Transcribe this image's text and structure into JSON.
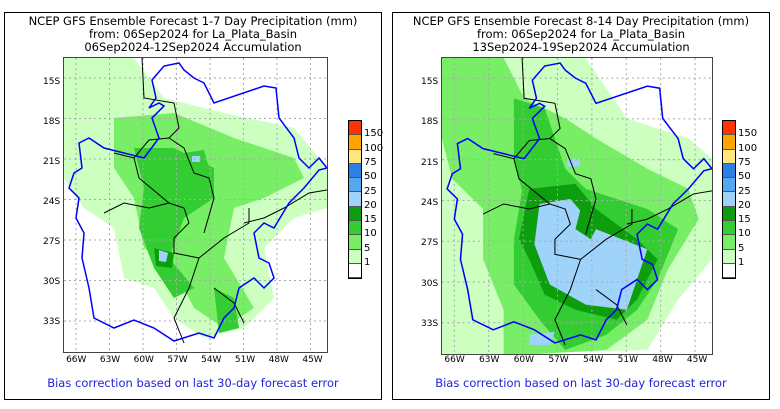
{
  "panels": [
    {
      "title1": "NCEP GFS Ensemble Forecast 1-7 Day Precipitation (mm)",
      "title2": "from: 06Sep2024   for La_Plata_Basin",
      "title3": "06Sep2024-12Sep2024 Accumulation",
      "bias_note": "Bias correction based on last 30-day forecast error"
    },
    {
      "title1": "NCEP GFS Ensemble Forecast 8-14 Day Precipitation (mm)",
      "title2": "from: 06Sep2024   for La_Plata_Basin",
      "title3": "13Sep2024-19Sep2024 Accumulation",
      "bias_note": "Bias correction based on last 30-day forecast error"
    }
  ],
  "lat_labels": [
    "15S",
    "18S",
    "21S",
    "24S",
    "27S",
    "30S",
    "33S"
  ],
  "lon_labels": [
    "66W",
    "63W",
    "60W",
    "57W",
    "54W",
    "51W",
    "48W",
    "45W"
  ],
  "legend": {
    "labels": [
      "150",
      "100",
      "75",
      "50",
      "25",
      "20",
      "15",
      "10",
      "5",
      "1"
    ],
    "colors": [
      "#ff3300",
      "#ffa500",
      "#ffe680",
      "#2b7fe6",
      "#55a8f0",
      "#9fd3fa",
      "#0d9e0d",
      "#33cc33",
      "#77ee66",
      "#ccffc0",
      "#ffffff"
    ]
  },
  "colors": {
    "basin_outline": "#0000ff",
    "borders": "#000000",
    "bias_text": "#2222dd"
  }
}
